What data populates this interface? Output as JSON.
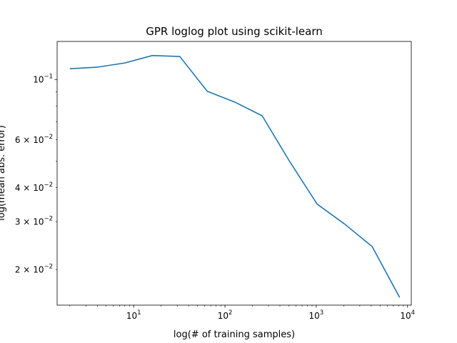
{
  "chart_data": {
    "type": "line",
    "title": "GPR loglog plot using scikit-learn",
    "xlabel": "log(# of training samples)",
    "ylabel": "log(mean abs. error)",
    "xscale": "log",
    "yscale": "log",
    "xlim": [
      1.45,
      11000
    ],
    "ylim": [
      0.0148,
      0.138
    ],
    "grid": false,
    "line_color": "#1f77b4",
    "x_ticks": [
      {
        "value": 10,
        "base": "10",
        "exp": "1"
      },
      {
        "value": 100,
        "base": "10",
        "exp": "2"
      },
      {
        "value": 1000,
        "base": "10",
        "exp": "3"
      },
      {
        "value": 10000,
        "base": "10",
        "exp": "4"
      }
    ],
    "y_ticks": [
      {
        "value": 0.1,
        "mant": "",
        "base": "10",
        "exp": "−1"
      },
      {
        "value": 0.06,
        "mant": "6 × ",
        "base": "10",
        "exp": "−2"
      },
      {
        "value": 0.04,
        "mant": "4 × ",
        "base": "10",
        "exp": "−2"
      },
      {
        "value": 0.03,
        "mant": "3 × ",
        "base": "10",
        "exp": "−2"
      },
      {
        "value": 0.02,
        "mant": "2 × ",
        "base": "10",
        "exp": "−2"
      }
    ],
    "series": [
      {
        "x": [
          2,
          4,
          8,
          16,
          32,
          64,
          128,
          256,
          512,
          1024,
          2048,
          4096,
          8192
        ],
        "y": [
          0.1095,
          0.111,
          0.115,
          0.1225,
          0.1215,
          0.0905,
          0.0826,
          0.0735,
          0.0499,
          0.0348,
          0.0294,
          0.0243,
          0.0158
        ]
      }
    ]
  }
}
